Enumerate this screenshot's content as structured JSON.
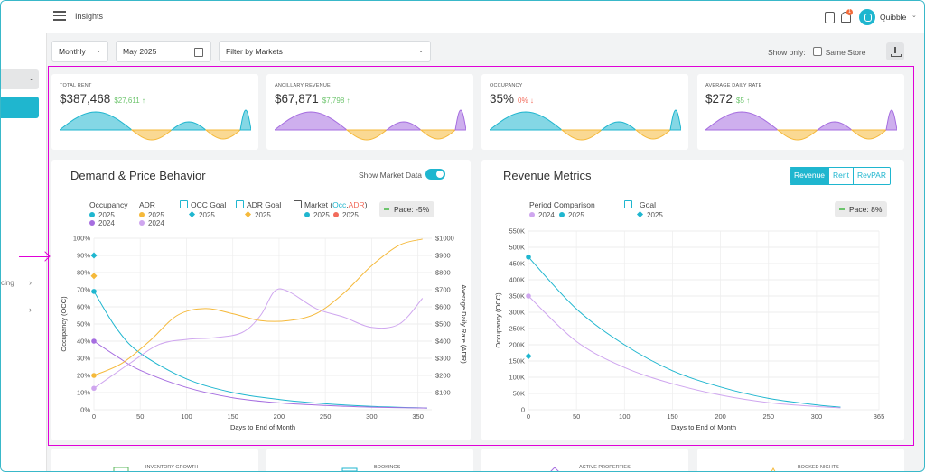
{
  "header": {
    "title": "Insights",
    "notification_count": "1",
    "user_name": "Quibble"
  },
  "sidebar": {
    "item_partial_label": "cing"
  },
  "filters": {
    "period": "Monthly",
    "month": "May 2025",
    "market_filter": "Filter by Markets",
    "show_only_label": "Show only:",
    "same_store_label": "Same Store"
  },
  "kpis": [
    {
      "title": "TOTAL RENT",
      "value": "$387,468",
      "delta": "$27,611 ↑",
      "delta_color": "#6cc46c"
    },
    {
      "title": "ANCILLARY REVENUE",
      "value": "$67,871",
      "delta": "$7,798 ↑",
      "delta_color": "#6cc46c"
    },
    {
      "title": "OCCUPANCY",
      "value": "35%",
      "delta": "0% ↓",
      "delta_color": "#f26b5b"
    },
    {
      "title": "AVERAGE DAILY RATE",
      "value": "$272",
      "delta": "$5 ↑",
      "delta_color": "#6cc46c"
    }
  ],
  "demand": {
    "title": "Demand & Price Behavior",
    "toggle_label": "Show Market Data",
    "legend": {
      "occupancy": "Occupancy",
      "adr": "ADR",
      "occ_goal": "OCC Goal",
      "adr_goal": "ADR Goal",
      "market": "Market (",
      "market_occ": "Occ",
      "market_sep": ",",
      "market_adr": "ADR",
      "market_close": ")",
      "y2025": "2025",
      "y2024": "2024"
    },
    "pace": "Pace: -5%"
  },
  "revenue": {
    "title": "Revenue Metrics",
    "tabs": [
      "Revenue",
      "Rent",
      "RevPAR"
    ],
    "legend": {
      "period": "Period Comparison",
      "goal": "Goal",
      "y2024": "2024",
      "y2025": "2025"
    },
    "pace": "Pace: 8%"
  },
  "bottom_cards": [
    "INVENTORY GROWTH",
    "BOOKINGS",
    "ACTIVE PROPERTIES",
    "BOOKED NIGHTS"
  ],
  "colors": {
    "teal": "#1fb6cf",
    "purple": "#a66ee0",
    "orange": "#f5b93a",
    "light_purple": "#cfa6ef",
    "highlight": "#e000d8"
  },
  "chart_data": [
    {
      "type": "line",
      "title": "",
      "xlabel": "Days to End of Month",
      "ylabel": "Occupancy (OCC)",
      "y2label": "Average Daily Rate (ADR)",
      "xlim": [
        0,
        365
      ],
      "ylim": [
        0,
        100
      ],
      "y2lim": [
        0,
        1000
      ],
      "xticks": [
        0,
        50,
        100,
        150,
        200,
        250,
        300,
        350
      ],
      "yticks": [
        "0%",
        "10%",
        "20%",
        "30%",
        "40%",
        "50%",
        "60%",
        "70%",
        "80%",
        "90%",
        "100%"
      ],
      "y2ticks": [
        "$100",
        "$200",
        "$300",
        "$400",
        "$500",
        "$600",
        "$700",
        "$800",
        "$900",
        "$1000"
      ],
      "series": [
        {
          "name": "Occupancy 2025",
          "axis": "left",
          "color": "#1fb6cf",
          "points": [
            [
              0,
              69
            ],
            [
              25,
              47
            ],
            [
              50,
              33
            ],
            [
              100,
              18
            ],
            [
              150,
              10
            ],
            [
              200,
              6
            ],
            [
              250,
              3.5
            ],
            [
              300,
              2
            ],
            [
              360,
              1
            ]
          ]
        },
        {
          "name": "Occupancy 2024",
          "axis": "left",
          "color": "#a66ee0",
          "points": [
            [
              0,
              40
            ],
            [
              25,
              31
            ],
            [
              50,
              23
            ],
            [
              100,
              13
            ],
            [
              150,
              7
            ],
            [
              200,
              4
            ],
            [
              250,
              2.5
            ],
            [
              300,
              1.5
            ],
            [
              360,
              1
            ]
          ]
        },
        {
          "name": "ADR 2025",
          "axis": "right",
          "color": "#f5b93a",
          "points": [
            [
              0,
              200
            ],
            [
              30,
              270
            ],
            [
              60,
              400
            ],
            [
              90,
              550
            ],
            [
              120,
              590
            ],
            [
              150,
              560
            ],
            [
              180,
              520
            ],
            [
              210,
              520
            ],
            [
              240,
              560
            ],
            [
              270,
              680
            ],
            [
              300,
              840
            ],
            [
              330,
              960
            ],
            [
              355,
              995
            ]
          ]
        },
        {
          "name": "ADR 2024",
          "axis": "right",
          "color": "#cfa6ef",
          "points": [
            [
              0,
              125
            ],
            [
              40,
              275
            ],
            [
              70,
              380
            ],
            [
              100,
              410
            ],
            [
              130,
              420
            ],
            [
              160,
              450
            ],
            [
              180,
              550
            ],
            [
              195,
              690
            ],
            [
              210,
              690
            ],
            [
              240,
              590
            ],
            [
              270,
              540
            ],
            [
              300,
              480
            ],
            [
              330,
              500
            ],
            [
              355,
              650
            ]
          ]
        }
      ],
      "goals": [
        {
          "name": "OCC Goal 2025",
          "x": 0,
          "y": 90,
          "axis": "left",
          "color": "#1fb6cf"
        },
        {
          "name": "ADR Goal 2025",
          "x": 0,
          "y": 780,
          "axis": "right",
          "color": "#f5b93a"
        }
      ]
    },
    {
      "type": "line",
      "title": "",
      "xlabel": "Days to End of Month",
      "ylabel": "Occupancy (OCC)",
      "xlim": [
        0,
        365
      ],
      "ylim": [
        0,
        550000
      ],
      "xticks": [
        0,
        50,
        100,
        150,
        200,
        250,
        300,
        365
      ],
      "yticks": [
        "0",
        "50K",
        "100K",
        "150K",
        "200K",
        "250K",
        "300K",
        "350K",
        "400K",
        "450K",
        "500K",
        "550K"
      ],
      "series": [
        {
          "name": "2025",
          "color": "#1fb6cf",
          "points": [
            [
              0,
              470000
            ],
            [
              50,
              310000
            ],
            [
              100,
              200000
            ],
            [
              150,
              120000
            ],
            [
              200,
              70000
            ],
            [
              250,
              35000
            ],
            [
              300,
              15000
            ],
            [
              325,
              8000
            ]
          ]
        },
        {
          "name": "2024",
          "color": "#cfa6ef",
          "points": [
            [
              0,
              350000
            ],
            [
              50,
              210000
            ],
            [
              100,
              130000
            ],
            [
              150,
              80000
            ],
            [
              200,
              45000
            ],
            [
              250,
              22000
            ],
            [
              300,
              10000
            ],
            [
              325,
              6000
            ]
          ]
        }
      ],
      "goals": [
        {
          "name": "Goal 2025",
          "x": 0,
          "y": 165000,
          "color": "#1fb6cf"
        }
      ]
    }
  ]
}
